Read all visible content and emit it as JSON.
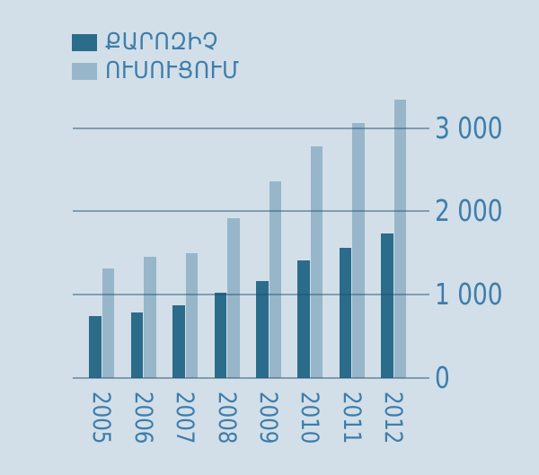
{
  "colors": {
    "background": "#d2dfe8",
    "text": "#3e7dab",
    "gridline_rgba": "rgba(32,78,110,0.45)",
    "series_dark": "#2b6c8b",
    "series_light": "#97b6c9"
  },
  "legend": {
    "position": "top-left",
    "items": [
      {
        "label": "ՔԱՐՈԶԻՉ",
        "color": "#2b6c8b"
      },
      {
        "label": "ՈՒՍՈՒՑՈՒՄ",
        "color": "#97b6c9"
      }
    ]
  },
  "chart_data": {
    "type": "bar",
    "title": "",
    "xlabel": "",
    "ylabel": "",
    "categories": [
      "2005",
      "2006",
      "2007",
      "2008",
      "2009",
      "2010",
      "2011",
      "2012"
    ],
    "series": [
      {
        "name": "ՔԱՐՈԶԻՉ",
        "color": "#2b6c8b",
        "values": [
          740,
          785,
          875,
          1020,
          1165,
          1415,
          1560,
          1735
        ]
      },
      {
        "name": "ՈՒՍՈՒՑՈՒՄ",
        "color": "#97b6c9",
        "values": [
          1315,
          1460,
          1500,
          1915,
          2355,
          2775,
          3065,
          3345
        ]
      }
    ],
    "yticks": [
      0,
      1000,
      2000,
      3000
    ],
    "ytick_labels": [
      "0",
      "1 000",
      "2 000",
      "3 000"
    ],
    "ylim": [
      0,
      3556
    ],
    "grid": true,
    "gridlines_over_bars": true,
    "legend_position": "top-left"
  }
}
